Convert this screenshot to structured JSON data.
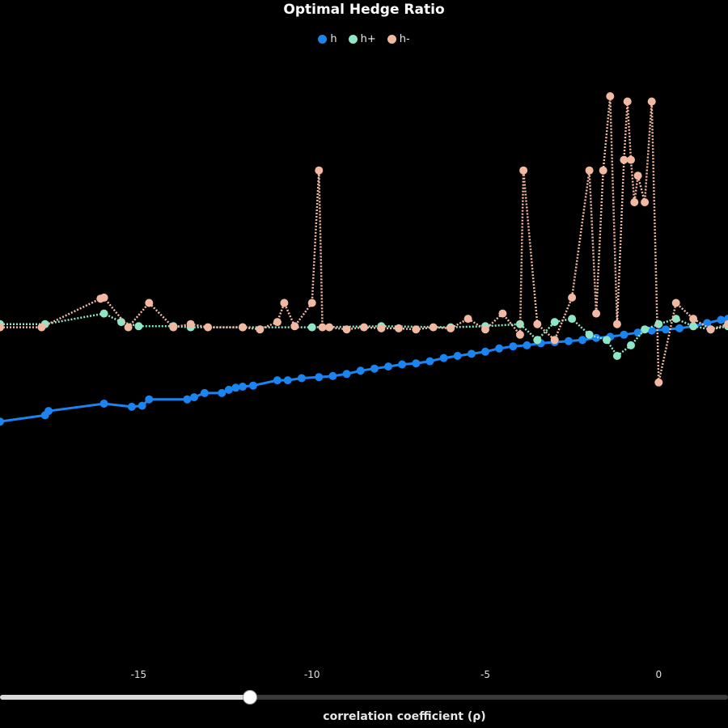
{
  "chart_data": {
    "type": "line",
    "title": "Optimal Hedge Ratio",
    "xlabel": "correlation coefficient (ρ)",
    "ylabel": "",
    "xlim": [
      -19.0,
      2.0
    ],
    "ylim": [
      -3.0,
      2.8
    ],
    "x_ticks": [
      -15,
      -10,
      -5,
      0
    ],
    "legend_position": "top-center",
    "grid": false,
    "series": [
      {
        "name": "h",
        "color": "#1a84f0",
        "line_style": "solid",
        "x": [
          -19.0,
          -17.7,
          -17.6,
          -16.0,
          -15.2,
          -14.9,
          -14.7,
          -13.6,
          -13.4,
          -13.1,
          -12.6,
          -12.4,
          -12.2,
          -12.0,
          -11.7,
          -11.0,
          -10.7,
          -10.3,
          -9.8,
          -9.4,
          -9.0,
          -8.6,
          -8.2,
          -7.8,
          -7.4,
          -7.0,
          -6.6,
          -6.2,
          -5.8,
          -5.4,
          -5.0,
          -4.6,
          -4.2,
          -3.8,
          -3.4,
          -3.0,
          -2.6,
          -2.2,
          -1.8,
          -1.4,
          -1.0,
          -0.6,
          -0.2,
          0.2,
          0.6,
          1.0,
          1.4,
          1.8,
          2.0
        ],
        "y": [
          -0.72,
          -0.66,
          -0.62,
          -0.55,
          -0.58,
          -0.57,
          -0.51,
          -0.51,
          -0.49,
          -0.45,
          -0.45,
          -0.42,
          -0.4,
          -0.39,
          -0.38,
          -0.33,
          -0.33,
          -0.31,
          -0.3,
          -0.29,
          -0.27,
          -0.24,
          -0.22,
          -0.2,
          -0.18,
          -0.17,
          -0.15,
          -0.12,
          -0.1,
          -0.08,
          -0.06,
          -0.03,
          -0.01,
          0.0,
          0.02,
          0.03,
          0.04,
          0.05,
          0.07,
          0.08,
          0.1,
          0.12,
          0.14,
          0.15,
          0.16,
          0.18,
          0.21,
          0.24,
          0.25
        ]
      },
      {
        "name": "h+",
        "color": "#8ee6c6",
        "line_style": "dotted",
        "x": [
          -19.0,
          -17.7,
          -16.0,
          -15.5,
          -15.0,
          -14.0,
          -13.5,
          -12.0,
          -10.0,
          -8.0,
          -6.0,
          -5.0,
          -4.0,
          -3.5,
          -3.0,
          -2.5,
          -2.0,
          -1.5,
          -1.2,
          -0.8,
          -0.4,
          0.0,
          0.5,
          1.0,
          1.5,
          2.0
        ],
        "y": [
          0.2,
          0.2,
          0.3,
          0.22,
          0.18,
          0.18,
          0.17,
          0.17,
          0.17,
          0.18,
          0.17,
          0.18,
          0.2,
          0.05,
          0.22,
          0.25,
          0.1,
          0.05,
          -0.1,
          0.0,
          0.15,
          0.2,
          0.25,
          0.18,
          0.15,
          0.18
        ]
      },
      {
        "name": "h-",
        "color": "#f1b9a1",
        "line_style": "dotted",
        "x": [
          -19.0,
          -17.8,
          -16.1,
          -16.0,
          -15.3,
          -14.7,
          -14.0,
          -13.5,
          -13.0,
          -12.0,
          -11.5,
          -11.0,
          -10.8,
          -10.5,
          -10.0,
          -9.8,
          -9.7,
          -9.5,
          -9.0,
          -8.5,
          -8.0,
          -7.5,
          -7.0,
          -6.5,
          -6.0,
          -5.5,
          -5.0,
          -4.5,
          -4.0,
          -3.9,
          -3.5,
          -3.0,
          -2.5,
          -2.0,
          -1.8,
          -1.6,
          -1.4,
          -1.2,
          -1.0,
          -0.9,
          -0.8,
          -0.7,
          -0.6,
          -0.4,
          -0.2,
          0.0,
          0.5,
          1.0,
          1.5,
          2.0
        ],
        "y": [
          0.17,
          0.17,
          0.44,
          0.45,
          0.17,
          0.4,
          0.17,
          0.2,
          0.17,
          0.17,
          0.15,
          0.22,
          0.4,
          0.18,
          0.4,
          1.65,
          0.17,
          0.17,
          0.15,
          0.17,
          0.16,
          0.16,
          0.15,
          0.17,
          0.16,
          0.25,
          0.15,
          0.3,
          0.1,
          1.65,
          0.2,
          0.05,
          0.45,
          1.65,
          0.3,
          1.65,
          2.35,
          0.2,
          1.75,
          2.3,
          1.75,
          1.35,
          1.6,
          1.35,
          2.3,
          -0.35,
          0.4,
          0.25,
          0.15,
          0.2
        ]
      }
    ]
  }
}
